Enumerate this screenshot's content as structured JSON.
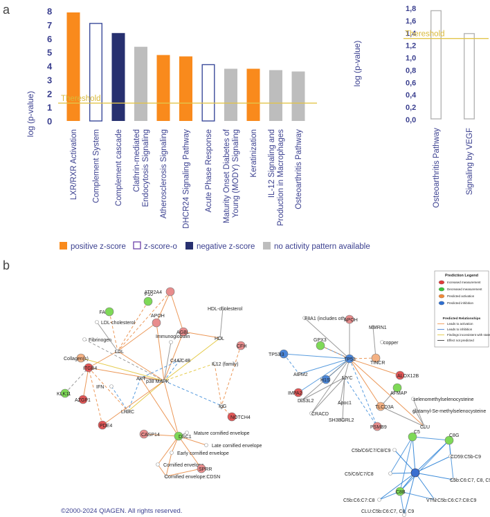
{
  "panels": {
    "a": "a",
    "b": "b"
  },
  "chart_data": [
    {
      "type": "bar",
      "ylabel": "log (p-value)",
      "ylim": [
        0,
        8
      ],
      "yticks": [
        "0",
        "1",
        "2",
        "3",
        "4",
        "5",
        "6",
        "7",
        "8"
      ],
      "threshold": {
        "label": "Thereshold",
        "value": 1.3
      },
      "categories": [
        {
          "label": [
            "LXR/RXR Activation"
          ],
          "value": 7.9,
          "kind": "positive"
        },
        {
          "label": [
            "Complement System"
          ],
          "value": 7.1,
          "kind": "zero"
        },
        {
          "label": [
            "Complement cascade"
          ],
          "value": 6.4,
          "kind": "negative"
        },
        {
          "label": [
            "Clathrin-mediated",
            "Endocytosis Signaling"
          ],
          "value": 5.4,
          "kind": "none"
        },
        {
          "label": [
            "Atherosclerosis Signaling"
          ],
          "value": 4.8,
          "kind": "positive"
        },
        {
          "label": [
            "DHCR24 Signaling Pathway"
          ],
          "value": 4.7,
          "kind": "positive"
        },
        {
          "label": [
            "Acute Phase Response"
          ],
          "value": 4.1,
          "kind": "zero"
        },
        {
          "label": [
            "Maturity Onset Diabetes of",
            "Young (MODY) Signaling"
          ],
          "value": 3.8,
          "kind": "none"
        },
        {
          "label": [
            "Keratinization"
          ],
          "value": 3.8,
          "kind": "positive"
        },
        {
          "label": [
            "IL-12 Signaling and",
            "Production in Macrophages"
          ],
          "value": 3.7,
          "kind": "none"
        },
        {
          "label": [
            "Osteoarthritis Pathway"
          ],
          "value": 3.6,
          "kind": "none"
        }
      ]
    },
    {
      "type": "bar",
      "ylabel": "log (p-value)",
      "ylim": [
        0,
        1.8
      ],
      "yticks": [
        "0,0",
        "0,2",
        "0,4",
        "0,6",
        "0,8",
        "1,0",
        "1,2",
        "1,4",
        "1,6",
        "1,8"
      ],
      "threshold": {
        "label": "Thereshold",
        "value": 1.3
      },
      "categories": [
        {
          "label": [
            "Osteoarthritis Pathway"
          ],
          "value": 1.75,
          "kind": "none-outline"
        },
        {
          "label": [
            "Signaling by VEGF"
          ],
          "value": 1.38,
          "kind": "none-outline"
        }
      ]
    }
  ],
  "legend": [
    {
      "label": "positive z-score",
      "color": "#f98a1c",
      "style": "fill"
    },
    {
      "label": "z-score-o",
      "color": "#6b3fa8",
      "style": "outline"
    },
    {
      "label": "negative z-score",
      "color": "#27306f",
      "style": "fill"
    },
    {
      "label": "no activity pattern available",
      "color": "#bdbdbd",
      "style": "fill"
    }
  ],
  "colors": {
    "positive": "#f98a1c",
    "zero": "#3a4a9a",
    "negative": "#27306f",
    "none": "#bdbdbd",
    "threshold": "#e2c44a"
  },
  "network_left": {
    "nodes": [
      {
        "label": "F10",
        "color": "#7ed957"
      },
      {
        "label": "FA",
        "color": "#7ed957"
      },
      {
        "label": "ATP2A4",
        "color": "#e88c8c"
      },
      {
        "label": "HDL-cholesterol",
        "color": "#ffffff"
      },
      {
        "label": "LDL-cholesterol",
        "color": "#ffffff"
      },
      {
        "label": "APOH",
        "color": "#e88c8c"
      },
      {
        "label": "AGBL",
        "color": "#e88c8c"
      },
      {
        "label": "HDL",
        "color": "#ffffff"
      },
      {
        "label": "Fibrinogen",
        "color": "#ffffff"
      },
      {
        "label": "LDL",
        "color": "#ffffff"
      },
      {
        "label": "Immunoglobulin",
        "color": "#ffffff"
      },
      {
        "label": "Collagen(s)",
        "color": "#f4b183"
      },
      {
        "label": "C4A/C4B",
        "color": "#ffffff"
      },
      {
        "label": "IL12 (family)",
        "color": "#ffffff"
      },
      {
        "label": "CFH",
        "color": "#e88c8c"
      },
      {
        "label": "ITGB4",
        "color": "#e05555"
      },
      {
        "label": "p38 MAPK",
        "color": "#ffffff"
      },
      {
        "label": "AKT",
        "color": "#ffffff"
      },
      {
        "label": "IFN",
        "color": "#ffffff"
      },
      {
        "label": "KLK11",
        "color": "#7ed957"
      },
      {
        "label": "AZGP1",
        "color": "#e05555"
      },
      {
        "label": "LRRC",
        "color": "#ffffff"
      },
      {
        "label": "IgG",
        "color": "#ffffff"
      },
      {
        "label": "NOTCH4",
        "color": "#e05555"
      },
      {
        "label": "DSC1",
        "color": "#7ed957"
      },
      {
        "label": "Mature cornified envelope",
        "color": "#ffffff"
      },
      {
        "label": "PDE4",
        "color": "#e05555"
      },
      {
        "label": "CASP14",
        "color": "#e88c8c"
      },
      {
        "label": "Early cornified envelope",
        "color": "#ffffff"
      },
      {
        "label": "Late cornified envelope",
        "color": "#ffffff"
      },
      {
        "label": "Cornified envelope",
        "color": "#ffffff"
      },
      {
        "label": "SPRR",
        "color": "#e88c8c"
      },
      {
        "label": "Cornified envelope:CDSN",
        "color": "#ffffff"
      }
    ]
  },
  "network_right": {
    "nodes": [
      {
        "label": "F8A1 (includes others)",
        "color": "#ffffff"
      },
      {
        "label": "MMRN1",
        "color": "#ffffff"
      },
      {
        "label": "TP53I3",
        "color": "#4a86d9"
      },
      {
        "label": "GPX3",
        "color": "#7ed957"
      },
      {
        "label": "APOH",
        "color": "#e88c8c"
      },
      {
        "label": "copper",
        "color": "#ffffff"
      },
      {
        "label": "TP53",
        "color": "#4a86d9"
      },
      {
        "label": "TINCR",
        "color": "#f4b183"
      },
      {
        "label": "AIFM2",
        "color": "#ffffff"
      },
      {
        "label": "ALOX12B",
        "color": "#e05555"
      },
      {
        "label": "IMPA2",
        "color": "#e05555"
      },
      {
        "label": "H1S",
        "color": "#4a86d9"
      },
      {
        "label": "MYC",
        "color": "#ffffff"
      },
      {
        "label": "AFMAP",
        "color": "#7ed957"
      },
      {
        "label": "selenomethylselenocysteine",
        "color": "#ffffff"
      },
      {
        "label": "glutamyl-Se-methylselenocysteine",
        "color": "#ffffff"
      },
      {
        "label": "DIS3L2",
        "color": "#ffffff"
      },
      {
        "label": "Apoc1",
        "color": "#ffffff"
      },
      {
        "label": "TLCD3A",
        "color": "#f4b183"
      },
      {
        "label": "CRACD",
        "color": "#ffffff"
      },
      {
        "label": "SH3BGRL2",
        "color": "#ffffff"
      },
      {
        "label": "PSMB9",
        "color": "#e88c8c"
      },
      {
        "label": "CLU",
        "color": "#ffffff"
      }
    ]
  },
  "network_complement": {
    "nodes": [
      {
        "label": "C5",
        "color": "#7ed957"
      },
      {
        "label": "C5b/C6/C7/C8/C9",
        "color": "#ffffff"
      },
      {
        "label": "C8G",
        "color": "#7ed957"
      },
      {
        "label": "CD59:C5b-C9",
        "color": "#ffffff"
      },
      {
        "label": "C5/C6/C7/C8",
        "color": "#ffffff"
      },
      {
        "label": "C8B",
        "color": "#7ed957"
      },
      {
        "label": "C5b:C6:C7, C8, C9",
        "color": "#ffffff"
      },
      {
        "label": "C5b:C6:C7:C8",
        "color": "#ffffff"
      },
      {
        "label": "VTN:C5b:C6:C7:C8:C9",
        "color": "#ffffff"
      },
      {
        "label": "CLU:C5b:C6:C7, C8, C9",
        "color": "#ffffff"
      }
    ]
  },
  "prediction_legend": {
    "title": "Prediction Legend",
    "rows": [
      "Increased measurement",
      "Decreased measurement",
      "Predicted activation",
      "Predicted inhibition",
      "Leads to activation",
      "Leads to inhibition",
      "Findings inconsistent with state of downstream molecule",
      "Effect not predicted"
    ],
    "section": "Predicted Relationships"
  },
  "copyright": "©2000-2024 QIAGEN. All rights reserved."
}
